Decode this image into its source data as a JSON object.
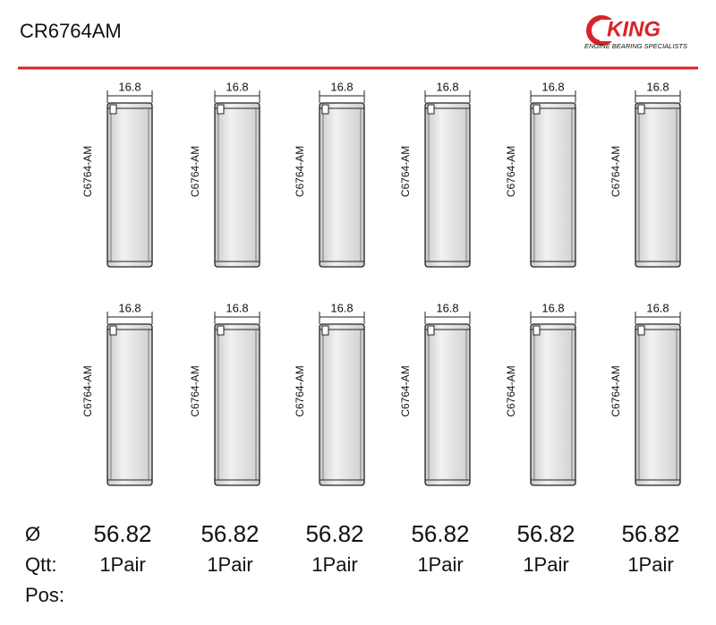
{
  "header": {
    "title": "CR6764AM",
    "logo": "KING",
    "tagline": "ENGINE BEARING SPECIALISTS"
  },
  "bearings": [
    {
      "width": "16.8",
      "code": "C6764-AM"
    },
    {
      "width": "16.8",
      "code": "C6764-AM"
    },
    {
      "width": "16.8",
      "code": "C6764-AM"
    },
    {
      "width": "16.8",
      "code": "C6764-AM"
    },
    {
      "width": "16.8",
      "code": "C6764-AM"
    },
    {
      "width": "16.8",
      "code": "C6764-AM"
    },
    {
      "width": "16.8",
      "code": "C6764-AM"
    },
    {
      "width": "16.8",
      "code": "C6764-AM"
    },
    {
      "width": "16.8",
      "code": "C6764-AM"
    },
    {
      "width": "16.8",
      "code": "C6764-AM"
    },
    {
      "width": "16.8",
      "code": "C6764-AM"
    },
    {
      "width": "16.8",
      "code": "C6764-AM"
    }
  ],
  "specs": {
    "diameter_label": "Ø",
    "diameters": [
      "56.82",
      "56.82",
      "56.82",
      "56.82",
      "56.82",
      "56.82"
    ],
    "qty_label": "Qtt:",
    "quantities": [
      "1Pair",
      "1Pair",
      "1Pair",
      "1Pair",
      "1Pair",
      "1Pair"
    ],
    "pos_label": "Pos:"
  }
}
